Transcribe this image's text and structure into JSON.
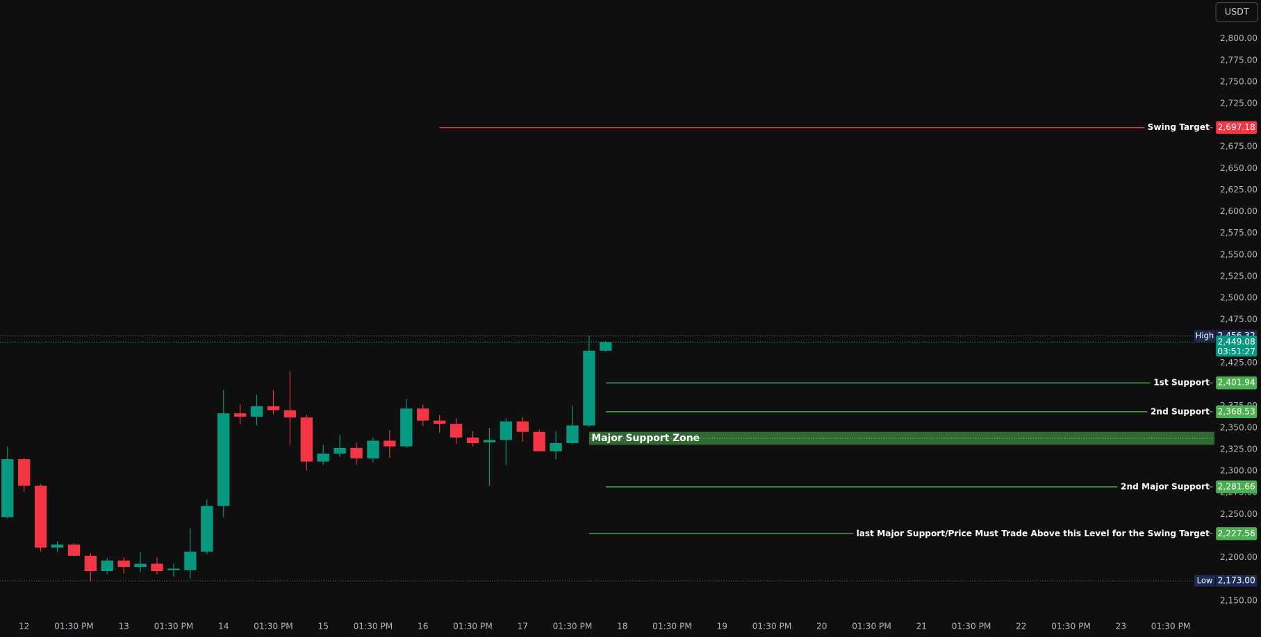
{
  "chart_data": {
    "type": "candlestick",
    "currency": "USDT",
    "up_color": "#089981",
    "down_color": "#f23645",
    "x": [
      -4,
      0,
      4,
      8,
      12,
      16,
      20,
      24,
      28,
      32,
      36,
      40,
      44,
      48,
      52,
      56,
      60,
      64,
      68,
      72,
      76,
      80,
      84,
      88,
      92,
      96,
      100,
      104,
      108,
      112,
      116,
      120,
      124,
      128,
      132,
      136,
      140
    ],
    "open": [
      2246.7,
      2313.7,
      2283.0,
      2211.4,
      2215.1,
      2202.1,
      2184.4,
      2196.5,
      2189.1,
      2192.8,
      2185.4,
      2185.4,
      2206.7,
      2259.7,
      2366.7,
      2362.9,
      2375.0,
      2370.4,
      2362.0,
      2310.9,
      2320.2,
      2326.7,
      2314.6,
      2335.1,
      2328.5,
      2372.3,
      2358.3,
      2354.6,
      2338.8,
      2333.2,
      2336.0,
      2357.4,
      2345.3,
      2322.9,
      2332.3,
      2352.7,
      2439.2
    ],
    "high": [
      2328.5,
      2315.5,
      2284.8,
      2218.8,
      2216.9,
      2204.9,
      2199.3,
      2200.2,
      2206.7,
      2200.2,
      2192.8,
      2233.7,
      2267.2,
      2393.6,
      2376.9,
      2388.1,
      2393.6,
      2415.0,
      2364.8,
      2330.4,
      2341.6,
      2333.2,
      2338.8,
      2347.2,
      2383.4,
      2376.9,
      2364.8,
      2361.1,
      2346.2,
      2349.9,
      2361.1,
      2362.9,
      2348.1,
      2346.2,
      2375.9,
      2456.32,
      2450.5
    ],
    "low": [
      2244.9,
      2275.6,
      2206.7,
      2206.7,
      2201.2,
      2172.3,
      2180.7,
      2181.6,
      2182.6,
      2180.7,
      2177.9,
      2175.1,
      2203.9,
      2246.7,
      2353.7,
      2352.7,
      2365.8,
      2330.4,
      2300.6,
      2307.2,
      2316.5,
      2307.2,
      2309.9,
      2315.5,
      2326.7,
      2351.8,
      2344.4,
      2331.3,
      2328.5,
      2283.0,
      2307.2,
      2334.1,
      2322.9,
      2313.7,
      2331.3,
      2350.9,
      2437.8
    ],
    "close": [
      2313.7,
      2283.0,
      2211.4,
      2215.1,
      2202.1,
      2184.4,
      2196.5,
      2189.1,
      2192.8,
      2184.4,
      2187.2,
      2206.7,
      2259.7,
      2366.7,
      2362.9,
      2375.0,
      2370.4,
      2362.0,
      2310.9,
      2320.2,
      2326.7,
      2314.6,
      2335.1,
      2328.5,
      2372.3,
      2358.3,
      2354.6,
      2338.8,
      2332.3,
      2336.0,
      2357.4,
      2345.3,
      2322.9,
      2332.3,
      2352.7,
      2439.2,
      2449.08
    ],
    "xlim": [
      -5.8,
      286.5
    ],
    "xticks": [
      {
        "value": 0,
        "label": "12"
      },
      {
        "value": 12,
        "label": "01:30 PM"
      },
      {
        "value": 24,
        "label": "13"
      },
      {
        "value": 36,
        "label": "01:30 PM"
      },
      {
        "value": 48,
        "label": "14"
      },
      {
        "value": 60,
        "label": "01:30 PM"
      },
      {
        "value": 72,
        "label": "15"
      },
      {
        "value": 84,
        "label": "01:30 PM"
      },
      {
        "value": 96,
        "label": "16"
      },
      {
        "value": 108,
        "label": "01:30 PM"
      },
      {
        "value": 120,
        "label": "17"
      },
      {
        "value": 132,
        "label": "01:30 PM"
      },
      {
        "value": 144,
        "label": "18"
      },
      {
        "value": 156,
        "label": "01:30 PM"
      },
      {
        "value": 168,
        "label": "19"
      },
      {
        "value": 180,
        "label": "01:30 PM"
      },
      {
        "value": 192,
        "label": "20"
      },
      {
        "value": 204,
        "label": "01:30 PM"
      },
      {
        "value": 216,
        "label": "21"
      },
      {
        "value": 228,
        "label": "01:30 PM"
      },
      {
        "value": 240,
        "label": "22"
      },
      {
        "value": 252,
        "label": "01:30 PM"
      },
      {
        "value": 264,
        "label": "23"
      },
      {
        "value": 276,
        "label": "01:30 PM"
      }
    ],
    "ylim": [
      2133.3,
      2844.6
    ],
    "yticks": [
      {
        "value": 2150,
        "label": "2,150.00"
      },
      {
        "value": 2175,
        "label": "2,175.00"
      },
      {
        "value": 2200,
        "label": "2,200.00"
      },
      {
        "value": 2225,
        "label": "2,225.00"
      },
      {
        "value": 2250,
        "label": "2,250.00"
      },
      {
        "value": 2275,
        "label": "2,275.00"
      },
      {
        "value": 2300,
        "label": "2,300.00"
      },
      {
        "value": 2325,
        "label": "2,325.00"
      },
      {
        "value": 2350,
        "label": "2,350.00"
      },
      {
        "value": 2375,
        "label": "2,375.00"
      },
      {
        "value": 2400,
        "label": "2,400.00"
      },
      {
        "value": 2425,
        "label": "2,425.00"
      },
      {
        "value": 2450,
        "label": "2,450.00"
      },
      {
        "value": 2475,
        "label": "2,475.00"
      },
      {
        "value": 2500,
        "label": "2,500.00"
      },
      {
        "value": 2525,
        "label": "2,525.00"
      },
      {
        "value": 2550,
        "label": "2,550.00"
      },
      {
        "value": 2575,
        "label": "2,575.00"
      },
      {
        "value": 2600,
        "label": "2,600.00"
      },
      {
        "value": 2625,
        "label": "2,625.00"
      },
      {
        "value": 2650,
        "label": "2,650.00"
      },
      {
        "value": 2675,
        "label": "2,675.00"
      },
      {
        "value": 2700,
        "label": "2,700.00"
      },
      {
        "value": 2725,
        "label": "2,725.00"
      },
      {
        "value": 2750,
        "label": "2,750.00"
      },
      {
        "value": 2775,
        "label": "2,775.00"
      },
      {
        "value": 2800,
        "label": "2,800.00"
      }
    ],
    "levels": [
      {
        "name": "Swing Target",
        "value": 2697.18,
        "value_label": "2,697.18",
        "color": "#f23645",
        "start": 100
      },
      {
        "name": "1st Support",
        "value": 2401.94,
        "value_label": "2,401.94",
        "color": "#4caf50",
        "start": 140
      },
      {
        "name": "2nd Support",
        "value": 2368.53,
        "value_label": "2,368.53",
        "color": "#4caf50",
        "start": 140
      },
      {
        "name": "2nd Major Support",
        "value": 2281.66,
        "value_label": "2,281.66",
        "color": "#4caf50",
        "start": 140
      },
      {
        "name": "last Major  Support/Price Must Trade Above this Level for the Swing Target",
        "value": 2227.56,
        "value_label": "2,227.56",
        "color": "#4caf50",
        "start": 136
      }
    ],
    "zone": {
      "name": "Major Support Zone",
      "low": 2330.4,
      "high": 2345.3,
      "start": 136,
      "color": "#2f6b31"
    },
    "extremes": [
      {
        "name": "High",
        "value": 2456.32,
        "value_label": "2,456.32"
      },
      {
        "name": "Low",
        "value": 2173.0,
        "value_label": "2,173.00"
      }
    ],
    "last_price": {
      "value": 2449.08,
      "value_label": "2,449.08",
      "countdown": "03:51:27"
    }
  }
}
